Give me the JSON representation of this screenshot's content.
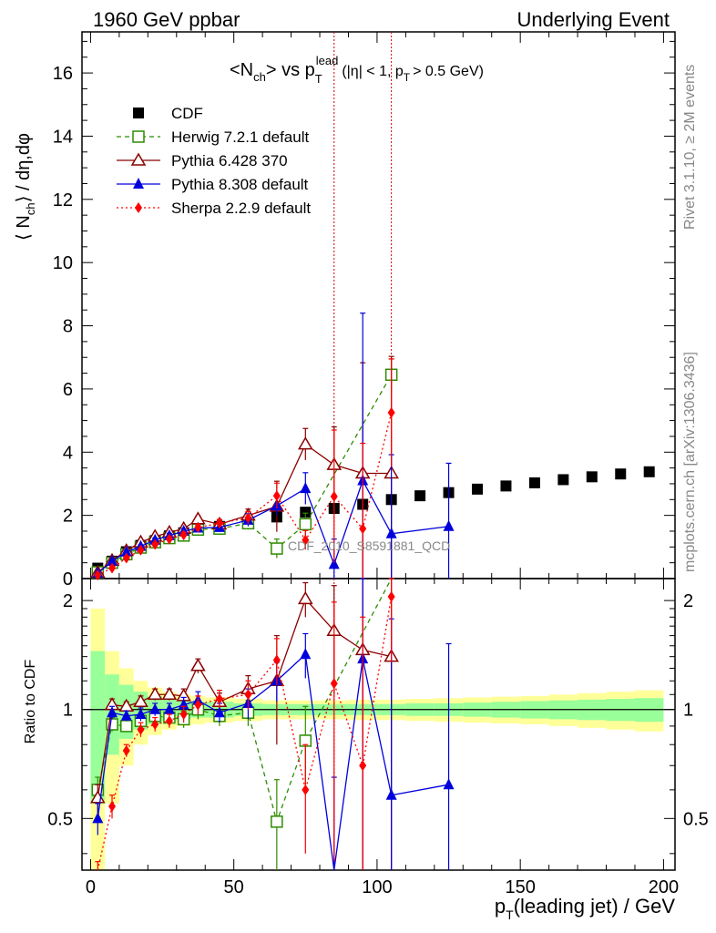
{
  "header": {
    "left": "1960 GeV ppbar",
    "right": "Underlying Event"
  },
  "side": {
    "rivet": "Rivet 3.1.10, ≥ 2M events",
    "mcplots": "mcplots.cern.ch [arXiv:1306.3436]"
  },
  "chart_data": {
    "type": "scatter",
    "title": {
      "part1": "<N",
      "part1_sub": "ch",
      "part2": "> vs p",
      "part2_sup": "lead",
      "part2_sub": "T",
      "part3": "(|η| < 1, p",
      "part3_sub": "T",
      "part4": "> 0.5 GeV)"
    },
    "watermark": "CDF_2010_S8591881_QCD",
    "ylabel": {
      "part1": "⟨ N",
      "part1_sub": "ch",
      "part2": "⟩ / dη,dφ"
    },
    "ratio_ylabel": "Ratio to CDF",
    "xlabel": {
      "part1": "p",
      "part1_sub": "T",
      "part2": "(leading jet) / GeV"
    },
    "xlim": [
      -3,
      204
    ],
    "ylim": [
      0,
      17.3
    ],
    "ratio_ylim": [
      0.36,
      2.3
    ],
    "ratio_log": true,
    "xticks": [
      0,
      50,
      100,
      150,
      200
    ],
    "yticks": [
      0,
      2,
      4,
      6,
      8,
      10,
      12,
      14,
      16
    ],
    "ratio_yticks": [
      0.5,
      1,
      2
    ],
    "bin_edges": [
      0,
      5,
      10,
      15,
      20,
      25,
      30,
      35,
      40,
      50,
      60,
      70,
      80,
      90,
      100,
      110,
      120,
      130,
      140,
      150,
      160,
      170,
      180,
      190,
      200
    ],
    "band": {
      "green": [
        0.45,
        0.25,
        0.17,
        0.12,
        0.09,
        0.07,
        0.06,
        0.05,
        0.05,
        0.04,
        0.035,
        0.035,
        0.035,
        0.035,
        0.035,
        0.04,
        0.04,
        0.045,
        0.05,
        0.055,
        0.06,
        0.065,
        0.07,
        0.075
      ],
      "yellow": [
        0.9,
        0.45,
        0.3,
        0.2,
        0.15,
        0.12,
        0.1,
        0.09,
        0.08,
        0.07,
        0.06,
        0.06,
        0.06,
        0.065,
        0.065,
        0.07,
        0.075,
        0.08,
        0.085,
        0.09,
        0.1,
        0.11,
        0.12,
        0.13
      ]
    },
    "vertical_lines": [
      85,
      105
    ],
    "series": [
      {
        "name": "CDF",
        "color": "#000000",
        "marker": "square-filled",
        "line": "none",
        "x": [
          2.5,
          7.5,
          12.5,
          17.5,
          22.5,
          27.5,
          32.5,
          37.5,
          45,
          55,
          65,
          75,
          85,
          95,
          105,
          115,
          125,
          135,
          145,
          155,
          165,
          175,
          185,
          195
        ],
        "y": [
          0.33,
          0.55,
          0.85,
          1.05,
          1.2,
          1.35,
          1.45,
          1.55,
          1.65,
          1.78,
          1.95,
          2.1,
          2.22,
          2.35,
          2.5,
          2.62,
          2.72,
          2.83,
          2.93,
          3.03,
          3.13,
          3.22,
          3.31,
          3.38
        ]
      },
      {
        "name": "Herwig 7.2.1 default",
        "color": "#2e8b00",
        "marker": "square-open",
        "line": "dashed",
        "x": [
          2.5,
          7.5,
          12.5,
          17.5,
          22.5,
          27.5,
          32.5,
          37.5,
          45,
          55,
          65,
          75,
          105
        ],
        "y": [
          0.2,
          0.5,
          0.77,
          0.98,
          1.15,
          1.28,
          1.36,
          1.55,
          1.58,
          1.75,
          0.95,
          1.72,
          6.45
        ],
        "err": [
          0.02,
          0.03,
          0.04,
          0.05,
          0.06,
          0.07,
          0.08,
          0.1,
          0.12,
          0.2,
          0.3,
          0.35,
          0.5
        ],
        "ratio": [
          0.6,
          0.91,
          0.9,
          0.93,
          0.96,
          0.95,
          0.94,
          1.0,
          0.96,
          0.98,
          0.49,
          0.82,
          2.6
        ],
        "ratio_err": [
          0.05,
          0.04,
          0.03,
          0.04,
          0.04,
          0.04,
          0.05,
          0.06,
          0.06,
          0.08,
          0.15,
          0.2,
          0.3
        ]
      },
      {
        "name": "Pythia 6.428 370",
        "color": "#8b0000",
        "marker": "triangle-open",
        "line": "solid",
        "x": [
          2.5,
          7.5,
          12.5,
          17.5,
          22.5,
          27.5,
          32.5,
          37.5,
          45,
          55,
          65,
          75,
          85,
          95,
          105
        ],
        "y": [
          0.19,
          0.57,
          0.88,
          1.15,
          1.33,
          1.46,
          1.58,
          1.88,
          1.72,
          2.0,
          2.28,
          4.25,
          3.6,
          3.33,
          3.33
        ],
        "err": [
          0.02,
          0.03,
          0.04,
          0.05,
          0.06,
          0.07,
          0.08,
          0.1,
          0.12,
          0.2,
          0.8,
          0.5,
          1.2,
          3.5,
          3.7
        ],
        "ratio": [
          0.57,
          1.03,
          1.02,
          1.05,
          1.1,
          1.1,
          1.09,
          1.32,
          1.05,
          1.14,
          1.2,
          2.02,
          1.65,
          1.46,
          1.4
        ],
        "ratio_err": [
          0.05,
          0.04,
          0.03,
          0.04,
          0.04,
          0.04,
          0.05,
          0.06,
          0.06,
          0.1,
          0.4,
          0.22,
          0.55,
          1.5,
          1.6
        ]
      },
      {
        "name": "Pythia 8.308 default",
        "color": "#0000dd",
        "marker": "triangle-filled",
        "line": "solid",
        "x": [
          2.5,
          7.5,
          12.5,
          17.5,
          22.5,
          27.5,
          32.5,
          37.5,
          45,
          55,
          65,
          75,
          85,
          95,
          105,
          125
        ],
        "y": [
          0.17,
          0.55,
          0.84,
          1.02,
          1.22,
          1.36,
          1.5,
          1.6,
          1.62,
          1.85,
          2.3,
          2.85,
          0.45,
          3.1,
          1.42,
          1.65
        ],
        "err": [
          0.02,
          0.03,
          0.04,
          0.05,
          0.06,
          0.07,
          0.08,
          0.1,
          0.12,
          0.2,
          0.3,
          0.5,
          0.8,
          5.3,
          2.5,
          2.0
        ],
        "ratio": [
          0.5,
          0.98,
          0.96,
          0.97,
          1.0,
          1.0,
          1.03,
          1.06,
          0.98,
          1.04,
          1.2,
          1.42,
          0.3,
          1.38,
          0.58,
          0.62
        ],
        "ratio_err": [
          0.05,
          0.04,
          0.03,
          0.04,
          0.04,
          0.04,
          0.05,
          0.06,
          0.06,
          0.1,
          0.15,
          0.2,
          0.35,
          2.0,
          1.2,
          0.9
        ]
      },
      {
        "name": "Sherpa 2.2.9 default",
        "color": "#ff0000",
        "marker": "diamond-filled",
        "line": "dotted",
        "x": [
          2.5,
          7.5,
          12.5,
          17.5,
          22.5,
          27.5,
          32.5,
          37.5,
          45,
          55,
          65,
          75,
          85,
          95,
          105
        ],
        "y": [
          0.11,
          0.33,
          0.65,
          0.9,
          1.08,
          1.25,
          1.38,
          1.62,
          1.75,
          1.92,
          2.62,
          1.22,
          2.6,
          1.58,
          5.25
        ],
        "err": [
          0.02,
          0.03,
          0.04,
          0.05,
          0.06,
          0.07,
          0.08,
          0.1,
          0.12,
          0.2,
          0.4,
          0.3,
          2.1,
          2.7,
          1.7
        ],
        "ratio": [
          0.33,
          0.54,
          0.77,
          0.88,
          0.91,
          0.93,
          0.97,
          1.03,
          1.07,
          1.1,
          1.37,
          0.6,
          1.18,
          0.7,
          2.05
        ],
        "ratio_err": [
          0.05,
          0.04,
          0.03,
          0.04,
          0.04,
          0.04,
          0.05,
          0.06,
          0.06,
          0.1,
          0.2,
          0.2,
          0.8,
          1.1,
          0.7
        ]
      }
    ]
  }
}
